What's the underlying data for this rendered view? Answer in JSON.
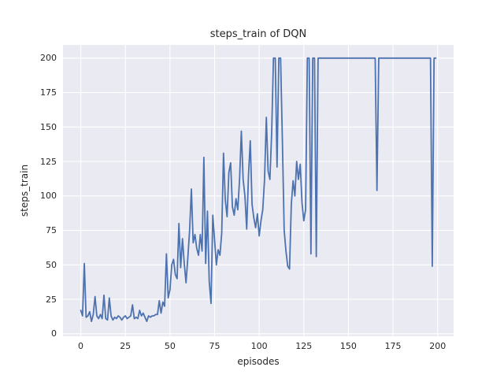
{
  "figure": {
    "title": "steps_train of DQN",
    "background": "#ffffff"
  },
  "chart_data": {
    "type": "line",
    "title": "steps_train of DQN",
    "xlabel": "episodes",
    "ylabel": "steps_train",
    "style": "seaborn-darkgrid",
    "grid": true,
    "legend": false,
    "line_color": "#4c72b0",
    "plot_bg": "#eaeaf2",
    "grid_color": "#ffffff",
    "text_color": "#262626",
    "x_start": 0,
    "x_step": 1,
    "xticks": [
      0,
      25,
      50,
      75,
      100,
      125,
      150,
      175,
      200
    ],
    "yticks": [
      0,
      25,
      50,
      75,
      100,
      125,
      150,
      175,
      200
    ],
    "xlim": [
      -9.95,
      208.95
    ],
    "ylim": [
      -1.8,
      209.6
    ],
    "values": [
      17,
      13,
      51,
      12,
      13,
      16,
      9,
      14,
      27,
      13,
      11,
      14,
      11,
      28,
      11,
      10,
      26,
      13,
      10,
      12,
      11,
      13,
      12,
      10,
      12,
      13,
      11,
      12,
      13,
      21,
      11,
      12,
      11,
      17,
      13,
      15,
      12,
      9,
      13,
      12,
      13,
      13,
      14,
      14,
      24,
      15,
      23,
      20,
      58,
      26,
      32,
      50,
      54,
      43,
      40,
      80,
      48,
      69,
      51,
      37,
      55,
      75,
      105,
      66,
      72,
      62,
      57,
      72,
      60,
      128,
      51,
      89,
      38,
      22,
      86,
      68,
      50,
      61,
      57,
      73,
      131,
      97,
      85,
      117,
      124,
      92,
      86,
      98,
      90,
      112,
      147,
      112,
      100,
      76,
      115,
      140,
      94,
      84,
      77,
      87,
      71,
      82,
      90,
      112,
      157,
      118,
      112,
      146,
      200,
      200,
      121,
      200,
      200,
      140,
      75,
      60,
      49,
      47,
      94,
      111,
      100,
      125,
      112,
      123,
      95,
      82,
      90,
      200,
      200,
      58,
      200,
      200,
      56,
      200,
      200,
      200,
      200,
      200,
      200,
      200,
      200,
      200,
      200,
      200,
      200,
      200,
      200,
      200,
      200,
      200,
      200,
      200,
      200,
      200,
      200,
      200,
      200,
      200,
      200,
      200,
      200,
      200,
      200,
      200,
      200,
      200,
      104,
      200,
      200,
      200,
      200,
      200,
      200,
      200,
      200,
      200,
      200,
      200,
      200,
      200,
      200,
      200,
      200,
      200,
      200,
      200,
      200,
      200,
      200,
      200,
      200,
      200,
      200,
      200,
      200,
      200,
      200,
      49,
      200,
      200
    ]
  }
}
